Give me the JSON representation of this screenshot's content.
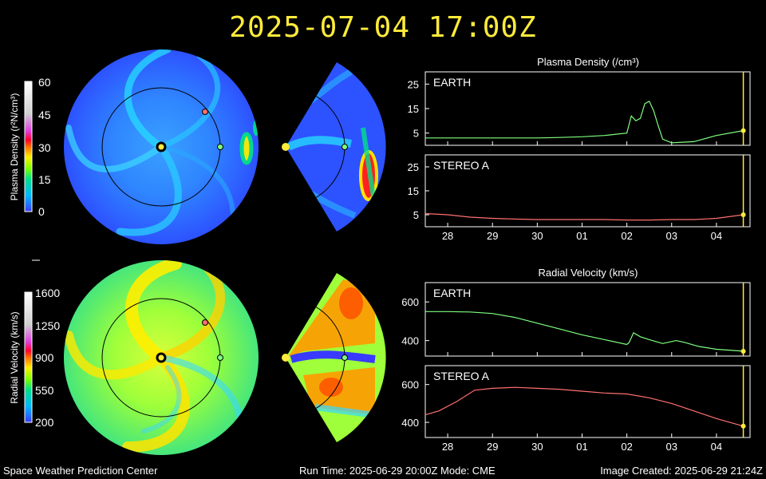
{
  "header": {
    "timestamp": "2025-07-04 17:00Z"
  },
  "footer": {
    "left": "Space Weather Prediction Center",
    "center": "Run Time: 2025-06-29 20:00Z  Mode: CME",
    "right": "Image Created: 2025-06-29 21:24Z"
  },
  "colorbars": {
    "density": {
      "label": "Plasma Density (r²N/cm³)",
      "ticks": [
        "60",
        "45",
        "30",
        "15",
        "0"
      ]
    },
    "velocity": {
      "label": "Radial Velocity (km/s)",
      "ticks": [
        "1600",
        "1250",
        "900",
        "550",
        "200"
      ]
    }
  },
  "colors": {
    "earth_line": "#7fff7f",
    "stereo_line": "#ff6f6f",
    "marker": "#ffeb3b",
    "timestamp": "#ffeb3b"
  },
  "chart_data": [
    {
      "type": "line",
      "title": "Plasma Density (/cm³)",
      "x_ticks": [
        "28",
        "29",
        "30",
        "01",
        "02",
        "03",
        "04"
      ],
      "panels": [
        {
          "label": "EARTH",
          "yticks": [
            "25",
            "15",
            "5"
          ],
          "ylim": [
            0,
            30
          ],
          "x": [
            27.5,
            28,
            28.5,
            29,
            29.5,
            30,
            30.5,
            31,
            31.5,
            32,
            32.1,
            32.2,
            32.3,
            32.4,
            32.5,
            32.6,
            32.7,
            32.8,
            33,
            33.5,
            34,
            34.6
          ],
          "y": [
            3,
            3,
            3,
            3,
            3,
            3,
            3.2,
            3.5,
            4,
            5,
            12,
            10,
            11,
            17,
            18,
            14,
            8,
            2.5,
            1,
            1.5,
            4,
            6
          ]
        },
        {
          "label": "STEREO A",
          "yticks": [
            "25",
            "15",
            "5"
          ],
          "ylim": [
            0,
            30
          ],
          "x": [
            27.5,
            28,
            28.5,
            29,
            29.5,
            30,
            30.5,
            31,
            31.5,
            32,
            32.5,
            33,
            33.5,
            34,
            34.6
          ],
          "y": [
            5.5,
            5,
            4,
            3.5,
            3.2,
            3,
            3,
            3,
            3,
            2.8,
            2.8,
            3,
            3,
            3.5,
            5
          ]
        }
      ]
    },
    {
      "type": "line",
      "title": "Radial Velocity (km/s)",
      "x_ticks": [
        "28",
        "29",
        "30",
        "01",
        "02",
        "03",
        "04"
      ],
      "panels": [
        {
          "label": "EARTH",
          "yticks": [
            "600",
            "400"
          ],
          "ylim": [
            320,
            700
          ],
          "x": [
            27.5,
            28,
            28.5,
            29,
            29.5,
            30,
            30.5,
            31,
            31.5,
            32,
            32.05,
            32.15,
            32.3,
            32.5,
            32.8,
            33,
            33.1,
            33.3,
            33.6,
            34,
            34.6
          ],
          "y": [
            550,
            550,
            548,
            540,
            520,
            490,
            460,
            430,
            405,
            380,
            390,
            440,
            420,
            405,
            385,
            395,
            400,
            390,
            370,
            355,
            345
          ]
        },
        {
          "label": "STEREO A",
          "yticks": [
            "600",
            "400"
          ],
          "ylim": [
            320,
            700
          ],
          "x": [
            27.5,
            27.8,
            28.2,
            28.6,
            29,
            29.5,
            30,
            30.5,
            31,
            31.5,
            32,
            32.5,
            33,
            33.5,
            34,
            34.6
          ],
          "y": [
            440,
            460,
            510,
            570,
            580,
            585,
            580,
            575,
            565,
            555,
            550,
            530,
            500,
            460,
            420,
            380
          ]
        }
      ]
    }
  ]
}
